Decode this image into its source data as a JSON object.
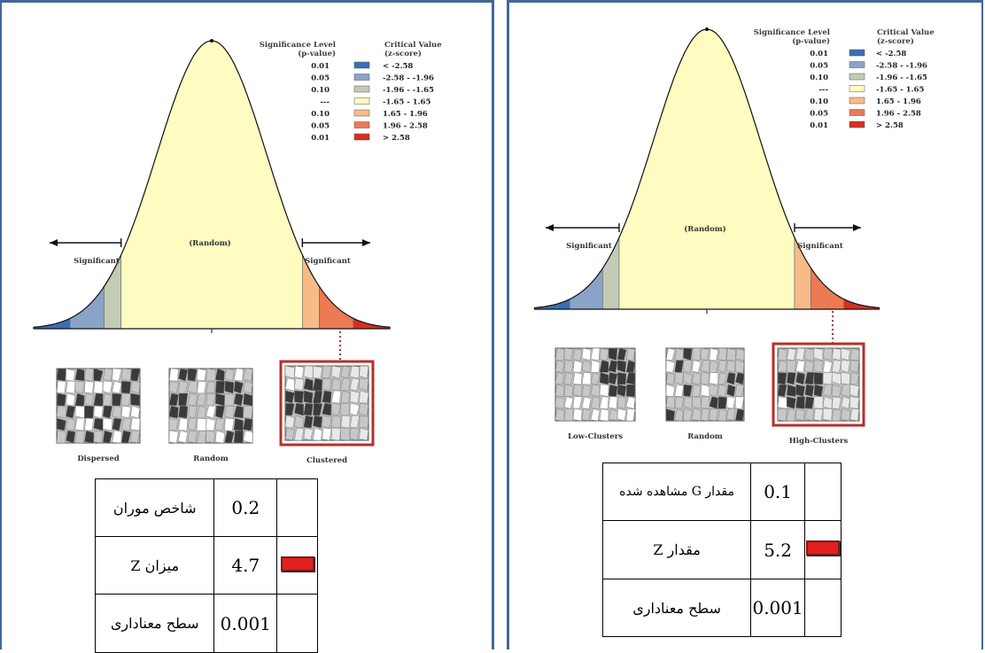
{
  "left": {
    "legend": {
      "header_level": [
        "Significance Level",
        "(p-value)"
      ],
      "header_critical": [
        "Critical Value",
        "(z-score)"
      ],
      "rows": [
        {
          "p": "0.01",
          "z": "< -2.58",
          "color": "#3a6fb5"
        },
        {
          "p": "0.05",
          "z": "-2.58 - -1.96",
          "color": "#8aa3c8"
        },
        {
          "p": "0.10",
          "z": "-1.96 - -1.65",
          "color": "#c3cbb4"
        },
        {
          "p": "---",
          "z": "-1.65 - 1.65",
          "color": "#fefcc0"
        },
        {
          "p": "0.10",
          "z": "1.65 - 1.96",
          "color": "#f8bb88"
        },
        {
          "p": "0.05",
          "z": "1.96 - 2.58",
          "color": "#eb7a55"
        },
        {
          "p": "0.01",
          "z": "> 2.58",
          "color": "#d72f22"
        }
      ]
    },
    "curve_labels": {
      "random": "(Random)",
      "sig_left": "Significant",
      "sig_right": "Significant"
    },
    "maps": [
      "Dispersed",
      "Random",
      "Clustered"
    ],
    "highlighted_map": "Clustered",
    "table": [
      {
        "label": "شاخص موران",
        "value": "0.2",
        "marker": false
      },
      {
        "label": "میزان Z",
        "value": "4.7",
        "marker": true
      },
      {
        "label": "سطح معناداری",
        "value": "0.001",
        "marker": false
      }
    ]
  },
  "right": {
    "legend": {
      "header_level": [
        "Significance Level",
        "(p-value)"
      ],
      "header_critical": [
        "Critical Value",
        "(z-score)"
      ],
      "rows": [
        {
          "p": "0.01",
          "z": "< -2.58",
          "color": "#3a6fb5"
        },
        {
          "p": "0.05",
          "z": "-2.58 - -1.96",
          "color": "#8aa3c8"
        },
        {
          "p": "0.10",
          "z": "-1.96 - -1.65",
          "color": "#c3cbb4"
        },
        {
          "p": "---",
          "z": "-1.65 - 1.65",
          "color": "#fefcc0"
        },
        {
          "p": "0.10",
          "z": "1.65 - 1.96",
          "color": "#f8bb88"
        },
        {
          "p": "0.05",
          "z": "1.96 - 2.58",
          "color": "#eb7a55"
        },
        {
          "p": "0.01",
          "z": "> 2.58",
          "color": "#d72f22"
        }
      ]
    },
    "curve_labels": {
      "random": "(Random)",
      "sig_left": "Significant",
      "sig_right": "Significant"
    },
    "maps": [
      "Low-Clusters",
      "Random",
      "High-Clusters"
    ],
    "highlighted_map": "High-Clusters",
    "table": [
      {
        "label": "مقدار G مشاهده شده",
        "value": "0.1",
        "marker": false
      },
      {
        "label": "مقدار Z",
        "value": "5.2",
        "marker": true
      },
      {
        "label": "سطح معناداری",
        "value": "0.001",
        "marker": false
      }
    ]
  },
  "colors": {
    "frame": "#41679a",
    "highlight_border": "#b3302a",
    "marker_red": "#e02020"
  }
}
